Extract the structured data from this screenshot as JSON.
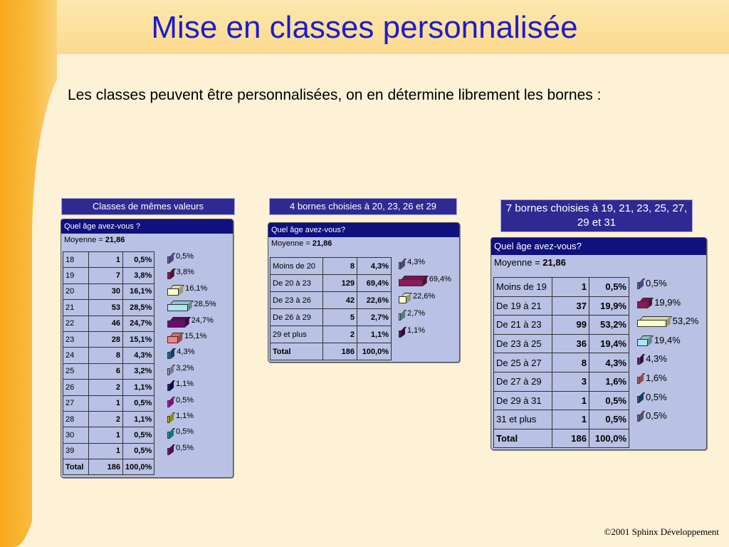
{
  "title": "Mise en classes personnalisée",
  "subtitle": "Les classes peuvent être personnalisées, on en détermine librement les bornes :",
  "footer": "©2001  Sphinx Développement",
  "panels": [
    {
      "label": "Classes de mêmes valeurs",
      "question": "Quel âge avez-vous ?",
      "mean_label": "Moyenne = ",
      "mean_value": "21,86",
      "rows": [
        {
          "cls": "18",
          "n": "1",
          "pct": "0,5%",
          "value": 0.5,
          "color": "#7b7bd0"
        },
        {
          "cls": "19",
          "n": "7",
          "pct": "3,8%",
          "value": 3.8,
          "color": "#8a1a5a"
        },
        {
          "cls": "20",
          "n": "30",
          "pct": "16,1%",
          "value": 16.1,
          "color": "#fdfdc8"
        },
        {
          "cls": "21",
          "n": "53",
          "pct": "28,5%",
          "value": 28.5,
          "color": "#a9e6ee"
        },
        {
          "cls": "22",
          "n": "46",
          "pct": "24,7%",
          "value": 24.7,
          "color": "#6a0a72"
        },
        {
          "cls": "23",
          "n": "28",
          "pct": "15,1%",
          "value": 15.1,
          "color": "#f68282"
        },
        {
          "cls": "24",
          "n": "8",
          "pct": "4,3%",
          "value": 4.3,
          "color": "#1a6aa8"
        },
        {
          "cls": "25",
          "n": "6",
          "pct": "3,2%",
          "value": 3.2,
          "color": "#c8c8f0"
        },
        {
          "cls": "26",
          "n": "2",
          "pct": "1,1%",
          "value": 1.1,
          "color": "#12127a"
        },
        {
          "cls": "27",
          "n": "1",
          "pct": "0,5%",
          "value": 0.5,
          "color": "#d21ad2"
        },
        {
          "cls": "28",
          "n": "2",
          "pct": "1,1%",
          "value": 1.1,
          "color": "#e8e81a"
        },
        {
          "cls": "30",
          "n": "1",
          "pct": "0,5%",
          "value": 0.5,
          "color": "#1ac8d2"
        },
        {
          "cls": "39",
          "n": "1",
          "pct": "0,5%",
          "value": 0.5,
          "color": "#7a1a7a"
        }
      ],
      "total": {
        "cls": "Total",
        "n": "186",
        "pct": "100,0%"
      }
    },
    {
      "label": "4 bornes choisies à 20, 23, 26 et 29",
      "question": "Quel âge avez-vous?",
      "mean_label": "Moyenne = ",
      "mean_value": "21,86",
      "rows": [
        {
          "cls": "Moins de 20",
          "n": "8",
          "pct": "4,3%",
          "value": 4.3,
          "color": "#7b7bd0"
        },
        {
          "cls": "De 20 à 23",
          "n": "129",
          "pct": "69,4%",
          "value": 69.4,
          "color": "#8a1a5a"
        },
        {
          "cls": "De 23 à 26",
          "n": "42",
          "pct": "22,6%",
          "value": 22.6,
          "color": "#fdfdc8"
        },
        {
          "cls": "De 26 à 29",
          "n": "5",
          "pct": "2,7%",
          "value": 2.7,
          "color": "#8ad2c8"
        },
        {
          "cls": "29 et plus",
          "n": "2",
          "pct": "1,1%",
          "value": 1.1,
          "color": "#6a0a72"
        }
      ],
      "total": {
        "cls": "Total",
        "n": "186",
        "pct": "100,0%"
      }
    },
    {
      "label": "7 bornes choisies à 19, 21, 23, 25, 27, 29 et 31",
      "question": "Quel âge avez-vous?",
      "mean_label": "Moyenne = ",
      "mean_value": "21,86",
      "rows": [
        {
          "cls": "Moins de 19",
          "n": "1",
          "pct": "0,5%",
          "value": 0.5,
          "color": "#7b7bd0"
        },
        {
          "cls": "De 19 à 21",
          "n": "37",
          "pct": "19,9%",
          "value": 19.9,
          "color": "#8a1a5a"
        },
        {
          "cls": "De 21 à 23",
          "n": "99",
          "pct": "53,2%",
          "value": 53.2,
          "color": "#fdfdc8"
        },
        {
          "cls": "De 23 à 25",
          "n": "36",
          "pct": "19,4%",
          "value": 19.4,
          "color": "#a9e6ee"
        },
        {
          "cls": "De 25 à 27",
          "n": "8",
          "pct": "4,3%",
          "value": 4.3,
          "color": "#6a0a72"
        },
        {
          "cls": "De 27 à 29",
          "n": "3",
          "pct": "1,6%",
          "value": 1.6,
          "color": "#f68282"
        },
        {
          "cls": "De 29 à 31",
          "n": "1",
          "pct": "0,5%",
          "value": 0.5,
          "color": "#1a6aa8"
        },
        {
          "cls": "31 et plus",
          "n": "1",
          "pct": "0,5%",
          "value": 0.5,
          "color": "#8a8ab0"
        }
      ],
      "total": {
        "cls": "Total",
        "n": "186",
        "pct": "100,0%"
      }
    }
  ]
}
